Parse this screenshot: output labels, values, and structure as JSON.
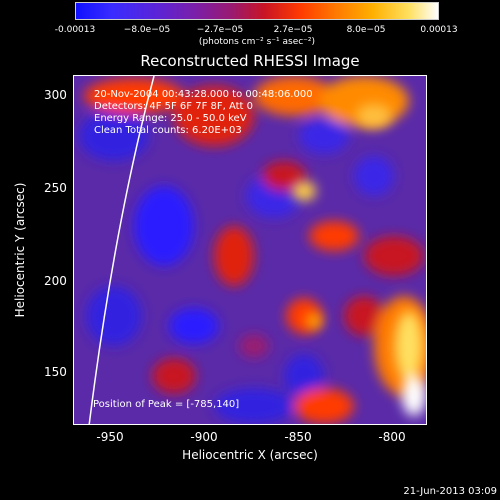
{
  "colorbar": {
    "ticks": [
      "-0.00013",
      "−8.0e−05",
      "−2.7e−05",
      "2.7e−05",
      "8.0e−05",
      "0.00013"
    ],
    "units": "(photons cm⁻² s⁻¹ asec⁻²)",
    "colors": [
      "#1010ff",
      "#7b1fa8",
      "#c81424",
      "#ff7a00",
      "#ffe060",
      "#ffffff"
    ]
  },
  "title": "Reconstructed RHESSI Image",
  "info": {
    "time": "20-Nov-2004 00:43:28.000 to 00:48:06.000",
    "detectors": "Detectors: 4F 5F 6F 7F 8F, Att 0",
    "energy": "Energy Range: 25.0 - 50.0 keV",
    "clean": "Clean    Total counts: 6.20E+03"
  },
  "peak": "Position of Peak = [-785,140]",
  "axes": {
    "xlabel": "Heliocentric X (arcsec)",
    "ylabel": "Heliocentric Y (arcsec)",
    "xticks": [
      "-950",
      "-900",
      "-850",
      "-800"
    ],
    "yticks": [
      "300",
      "250",
      "200",
      "150"
    ]
  },
  "footer_date": "21-Jun-2013 03:09"
}
